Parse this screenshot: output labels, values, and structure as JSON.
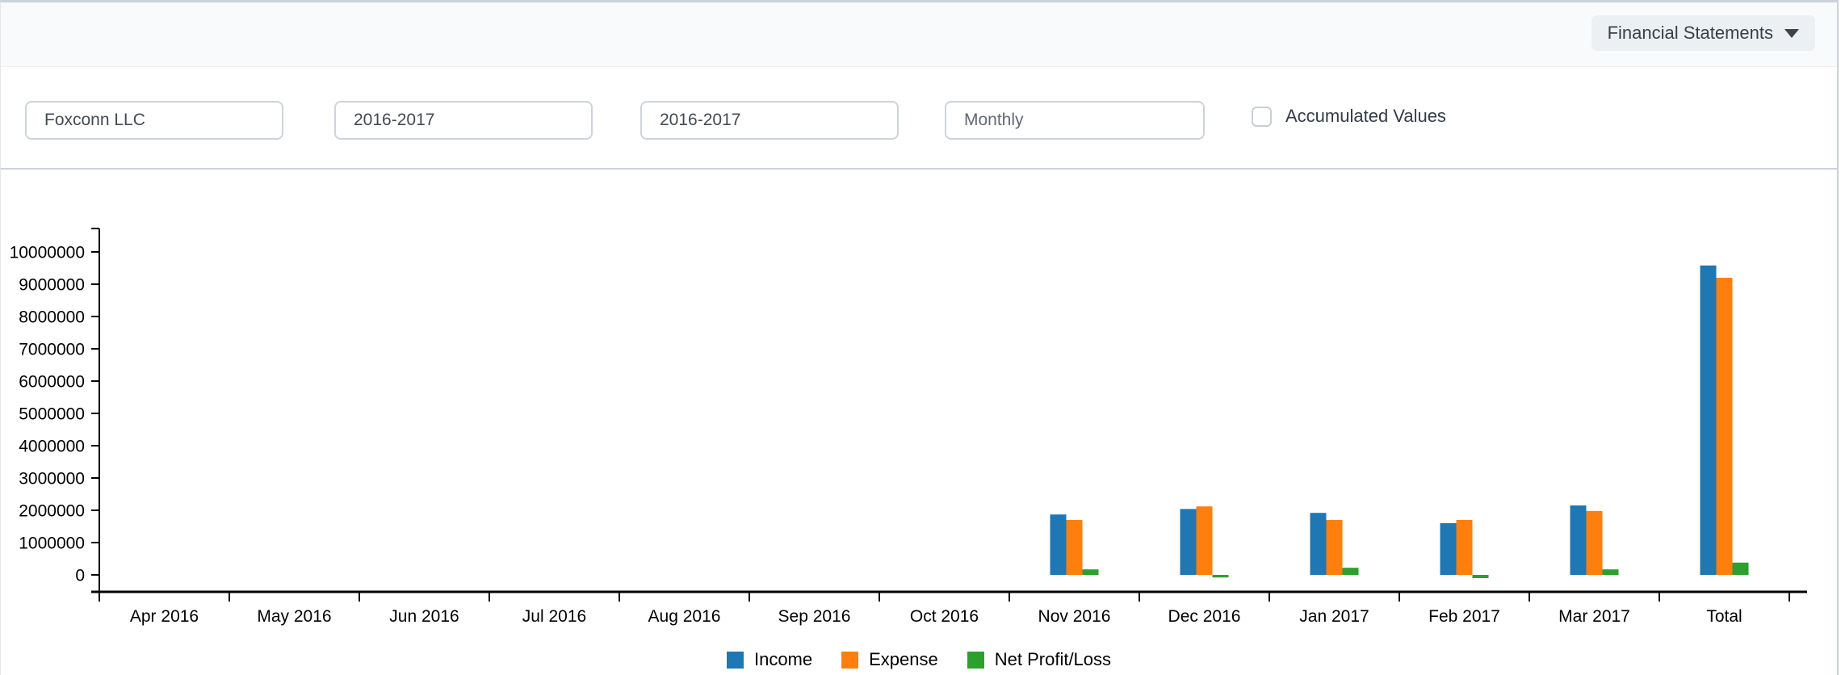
{
  "header": {
    "menu_button": {
      "label": "Financial Statements",
      "icon": "caret-down"
    }
  },
  "filters": {
    "company": {
      "value": "Foxconn LLC"
    },
    "fiscal_year_from": {
      "value": "2016-2017"
    },
    "fiscal_year_to": {
      "value": "2016-2017"
    },
    "periodicity": {
      "value": "Monthly"
    },
    "accumulated": {
      "label": "Accumulated Values",
      "checked": false
    }
  },
  "chart_data": {
    "type": "bar",
    "categories": [
      "Apr 2016",
      "May 2016",
      "Jun 2016",
      "Jul 2016",
      "Aug 2016",
      "Sep 2016",
      "Oct 2016",
      "Nov 2016",
      "Dec 2016",
      "Jan 2017",
      "Feb 2017",
      "Mar 2017",
      "Total"
    ],
    "series": [
      {
        "name": "Income",
        "color": "#1f77b4",
        "values": [
          0,
          0,
          0,
          0,
          0,
          0,
          0,
          1870000,
          2040000,
          1920000,
          1600000,
          2150000,
          9580000
        ]
      },
      {
        "name": "Expense",
        "color": "#ff7f0e",
        "values": [
          0,
          0,
          0,
          0,
          0,
          0,
          0,
          1700000,
          2120000,
          1700000,
          1700000,
          1980000,
          9200000
        ]
      },
      {
        "name": "Net Profit/Loss",
        "color": "#2ca02c",
        "values": [
          0,
          0,
          0,
          0,
          0,
          0,
          0,
          170000,
          -80000,
          220000,
          -100000,
          170000,
          380000
        ]
      }
    ],
    "y_ticks": [
      0,
      1000000,
      2000000,
      3000000,
      4000000,
      5000000,
      6000000,
      7000000,
      8000000,
      9000000,
      10000000
    ],
    "ylim": [
      -525000,
      10725000
    ],
    "title": "",
    "xlabel": "",
    "ylabel": "",
    "grid": false,
    "legend_position": "bottom",
    "axis_color": "#000000"
  }
}
